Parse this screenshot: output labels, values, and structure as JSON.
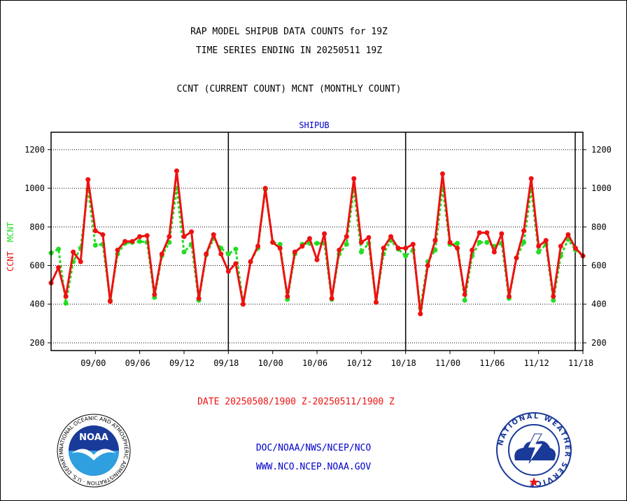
{
  "header": {
    "line1": "RAP MODEL SHIPUB DATA COUNTS for 19Z",
    "line2": "TIME SERIES ENDING IN 20250511 19Z",
    "line3": "CCNT (CURRENT COUNT) MCNT (MONTHLY COUNT)"
  },
  "date_range": "DATE 20250508/1900 Z-20250511/1900 Z",
  "footer": {
    "line1": "DOC/NOAA/NWS/NCEP/NCO",
    "line2": "WWW.NCO.NCEP.NOAA.GOV"
  },
  "logos": {
    "noaa": {
      "center_text": "NOAA",
      "ring_text": "NATIONAL OCEANIC AND ATMOSPHERIC ADMINISTRATION · U.S. DEPARTMENT OF COMMERCE"
    },
    "nws": {
      "ring_text": "NATIONAL WEATHER SERVICE"
    }
  },
  "colors": {
    "ccnt": "#ee1111",
    "mcnt": "#22dd22",
    "panel_title": "#0000cc",
    "date_text": "#ee1111"
  },
  "chart_data": {
    "type": "line",
    "title": "SHIPUB",
    "ylabel_left": [
      "CCNT",
      "MCNT"
    ],
    "ylim": [
      160,
      1290
    ],
    "yticks": [
      200,
      400,
      600,
      800,
      1000,
      1200
    ],
    "xlim": [
      0,
      72
    ],
    "x_ticks": [
      {
        "x": 6,
        "label": "09/00"
      },
      {
        "x": 12,
        "label": "09/06"
      },
      {
        "x": 18,
        "label": "09/12"
      },
      {
        "x": 24,
        "label": "09/18"
      },
      {
        "x": 30,
        "label": "10/00"
      },
      {
        "x": 36,
        "label": "10/06"
      },
      {
        "x": 42,
        "label": "10/12"
      },
      {
        "x": 48,
        "label": "10/18"
      },
      {
        "x": 54,
        "label": "11/00"
      },
      {
        "x": 60,
        "label": "11/06"
      },
      {
        "x": 66,
        "label": "11/12"
      },
      {
        "x": 72,
        "label": "11/18"
      }
    ],
    "day_dividers": [
      24,
      48,
      72
    ],
    "grid": true,
    "series": [
      {
        "name": "CCNT",
        "x": [
          0,
          1,
          2,
          3,
          4,
          5,
          6,
          7,
          8,
          9,
          10,
          11,
          12,
          13,
          14,
          15,
          16,
          17,
          18,
          19,
          20,
          21,
          22,
          23,
          24,
          25,
          26,
          27,
          28,
          29,
          30,
          31,
          32,
          33,
          34,
          35,
          36,
          37,
          38,
          39,
          40,
          41,
          42,
          43,
          44,
          45,
          46,
          47,
          48,
          49,
          50,
          51,
          52,
          53,
          54,
          55,
          56,
          57,
          58,
          59,
          60,
          61,
          62,
          63,
          64,
          65,
          66,
          67,
          68,
          69,
          70,
          71,
          72
        ],
        "values": [
          510,
          590,
          440,
          670,
          620,
          1045,
          780,
          760,
          415,
          680,
          725,
          725,
          750,
          755,
          450,
          660,
          750,
          1090,
          750,
          775,
          430,
          660,
          760,
          660,
          570,
          610,
          400,
          620,
          700,
          1000,
          720,
          690,
          440,
          670,
          700,
          740,
          630,
          765,
          430,
          680,
          750,
          1050,
          720,
          745,
          410,
          690,
          750,
          690,
          690,
          710,
          350,
          600,
          730,
          1075,
          720,
          690,
          450,
          680,
          770,
          770,
          670,
          765,
          440,
          640,
          780,
          1050,
          700,
          730,
          440,
          700,
          760,
          690,
          650
        ]
      },
      {
        "name": "MCNT",
        "x": [
          0,
          1,
          2,
          3,
          4,
          5,
          6,
          7,
          8,
          9,
          10,
          11,
          12,
          13,
          14,
          15,
          16,
          17,
          18,
          19,
          20,
          21,
          22,
          23,
          24,
          25,
          26,
          27,
          28,
          29,
          30,
          31,
          32,
          33,
          34,
          35,
          36,
          37,
          38,
          39,
          40,
          41,
          42,
          43,
          44,
          45,
          46,
          47,
          48,
          49,
          50,
          51,
          52,
          53,
          54,
          55,
          56,
          57,
          58,
          59,
          60,
          61,
          62,
          63,
          64,
          65,
          66,
          67,
          68,
          69,
          70,
          71,
          72
        ],
        "values": [
          665,
          685,
          405,
          620,
          690,
          995,
          705,
          710,
          420,
          660,
          715,
          720,
          725,
          720,
          435,
          650,
          720,
          1000,
          670,
          710,
          420,
          655,
          740,
          690,
          660,
          685,
          400,
          620,
          690,
          995,
          720,
          710,
          425,
          660,
          710,
          715,
          715,
          715,
          425,
          660,
          710,
          995,
          670,
          715,
          410,
          660,
          730,
          685,
          650,
          680,
          380,
          620,
          680,
          1000,
          710,
          715,
          420,
          650,
          720,
          720,
          700,
          715,
          430,
          640,
          720,
          995,
          670,
          710,
          420,
          650,
          735,
          680,
          650
        ]
      }
    ]
  }
}
